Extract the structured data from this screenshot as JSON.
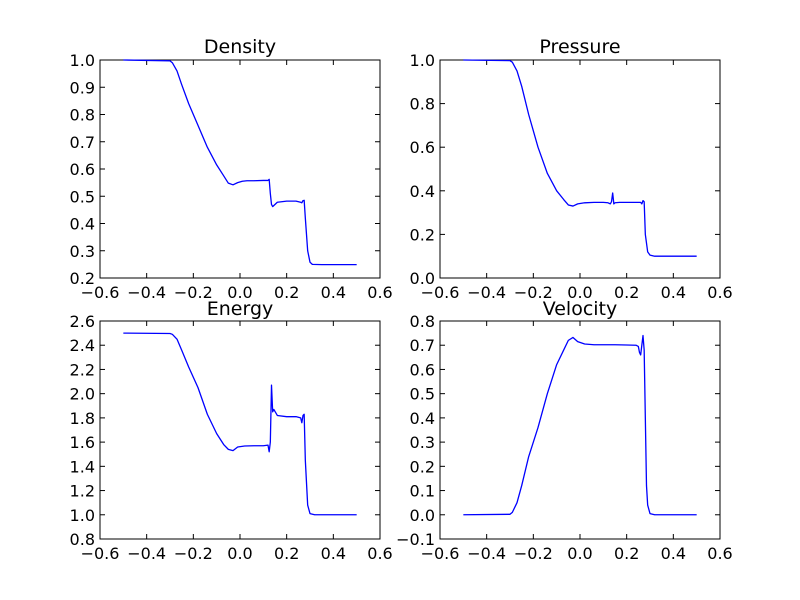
{
  "chart_data": [
    {
      "type": "line",
      "title": "Density",
      "xlim": [
        -0.6,
        0.6
      ],
      "ylim": [
        0.2,
        1.0
      ],
      "xticks": [
        "−0.6",
        "−0.4",
        "−0.2",
        "0.0",
        "0.2",
        "0.4",
        "0.6"
      ],
      "yticks": [
        "0.2",
        "0.3",
        "0.4",
        "0.5",
        "0.6",
        "0.7",
        "0.8",
        "0.9",
        "1.0"
      ],
      "series": [
        {
          "x": [
            -0.5,
            -0.3,
            -0.29,
            -0.27,
            -0.25,
            -0.22,
            -0.18,
            -0.14,
            -0.1,
            -0.07,
            -0.05,
            -0.03,
            -0.01,
            0.01,
            0.03,
            0.06,
            0.1,
            0.12,
            0.125,
            0.13,
            0.135,
            0.14,
            0.16,
            0.2,
            0.24,
            0.26,
            0.265,
            0.27,
            0.275,
            0.28,
            0.29,
            0.3,
            0.31,
            0.35,
            0.5
          ],
          "y": [
            1.0,
            0.997,
            0.99,
            0.96,
            0.91,
            0.84,
            0.76,
            0.68,
            0.615,
            0.575,
            0.548,
            0.542,
            0.55,
            0.555,
            0.557,
            0.557,
            0.558,
            0.558,
            0.562,
            0.51,
            0.47,
            0.462,
            0.478,
            0.482,
            0.482,
            0.478,
            0.476,
            0.484,
            0.485,
            0.42,
            0.3,
            0.258,
            0.25,
            0.249,
            0.249
          ]
        }
      ]
    },
    {
      "type": "line",
      "title": "Pressure",
      "xlim": [
        -0.6,
        0.6
      ],
      "ylim": [
        0.0,
        1.0
      ],
      "xticks": [
        "−0.6",
        "−0.4",
        "−0.2",
        "0.0",
        "0.2",
        "0.4",
        "0.6"
      ],
      "yticks": [
        "0.0",
        "0.2",
        "0.4",
        "0.6",
        "0.8",
        "1.0"
      ],
      "series": [
        {
          "x": [
            -0.5,
            -0.3,
            -0.29,
            -0.27,
            -0.25,
            -0.22,
            -0.18,
            -0.14,
            -0.1,
            -0.07,
            -0.05,
            -0.03,
            -0.01,
            0.02,
            0.06,
            0.1,
            0.12,
            0.13,
            0.135,
            0.14,
            0.145,
            0.15,
            0.17,
            0.2,
            0.24,
            0.26,
            0.265,
            0.27,
            0.275,
            0.28,
            0.29,
            0.3,
            0.32,
            0.5
          ],
          "y": [
            1.0,
            0.997,
            0.99,
            0.95,
            0.88,
            0.75,
            0.6,
            0.48,
            0.4,
            0.36,
            0.335,
            0.33,
            0.34,
            0.345,
            0.347,
            0.347,
            0.345,
            0.34,
            0.35,
            0.39,
            0.34,
            0.345,
            0.347,
            0.347,
            0.347,
            0.347,
            0.34,
            0.355,
            0.35,
            0.2,
            0.12,
            0.105,
            0.1,
            0.1
          ]
        }
      ]
    },
    {
      "type": "line",
      "title": "Energy",
      "xlim": [
        -0.6,
        0.6
      ],
      "ylim": [
        0.8,
        2.6
      ],
      "xticks": [
        "−0.6",
        "−0.4",
        "−0.2",
        "0.0",
        "0.2",
        "0.4",
        "0.6"
      ],
      "yticks": [
        "0.8",
        "1.0",
        "1.2",
        "1.4",
        "1.6",
        "1.8",
        "2.0",
        "2.2",
        "2.4",
        "2.6"
      ],
      "series": [
        {
          "x": [
            -0.5,
            -0.3,
            -0.29,
            -0.27,
            -0.25,
            -0.22,
            -0.18,
            -0.14,
            -0.1,
            -0.07,
            -0.05,
            -0.03,
            -0.01,
            0.02,
            0.06,
            0.1,
            0.12,
            0.125,
            0.13,
            0.135,
            0.14,
            0.145,
            0.16,
            0.2,
            0.24,
            0.26,
            0.265,
            0.27,
            0.275,
            0.28,
            0.29,
            0.3,
            0.32,
            0.5
          ],
          "y": [
            2.5,
            2.497,
            2.49,
            2.45,
            2.36,
            2.22,
            2.05,
            1.83,
            1.67,
            1.58,
            1.54,
            1.53,
            1.56,
            1.568,
            1.57,
            1.57,
            1.575,
            1.52,
            1.6,
            2.07,
            1.85,
            1.87,
            1.82,
            1.81,
            1.81,
            1.8,
            1.76,
            1.82,
            1.83,
            1.45,
            1.08,
            1.01,
            1.0,
            1.0
          ]
        }
      ]
    },
    {
      "type": "line",
      "title": "Velocity",
      "xlim": [
        -0.6,
        0.6
      ],
      "ylim": [
        -0.1,
        0.8
      ],
      "xticks": [
        "−0.6",
        "−0.4",
        "−0.2",
        "0.0",
        "0.2",
        "0.4",
        "0.6"
      ],
      "yticks": [
        "−0.1",
        "0.0",
        "0.1",
        "0.2",
        "0.3",
        "0.4",
        "0.5",
        "0.6",
        "0.7",
        "0.8"
      ],
      "series": [
        {
          "x": [
            -0.5,
            -0.3,
            -0.29,
            -0.27,
            -0.25,
            -0.22,
            -0.18,
            -0.14,
            -0.1,
            -0.07,
            -0.05,
            -0.03,
            -0.01,
            0.02,
            0.06,
            0.1,
            0.15,
            0.2,
            0.24,
            0.25,
            0.255,
            0.26,
            0.265,
            0.27,
            0.275,
            0.28,
            0.285,
            0.29,
            0.3,
            0.32,
            0.5
          ],
          "y": [
            0.0,
            0.002,
            0.01,
            0.05,
            0.12,
            0.24,
            0.36,
            0.5,
            0.62,
            0.68,
            0.72,
            0.732,
            0.715,
            0.705,
            0.702,
            0.702,
            0.702,
            0.701,
            0.7,
            0.695,
            0.67,
            0.66,
            0.7,
            0.74,
            0.68,
            0.4,
            0.12,
            0.04,
            0.005,
            0.0,
            0.0
          ]
        }
      ]
    }
  ],
  "colors": {
    "line": "#0000ff",
    "axes": "#000000",
    "background": "#ffffff"
  }
}
